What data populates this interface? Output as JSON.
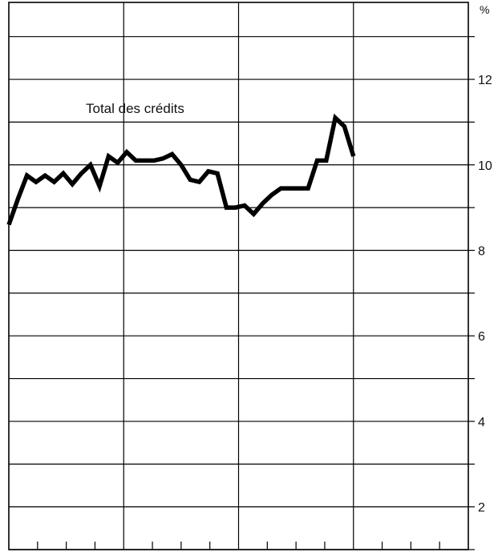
{
  "chart_data": {
    "type": "line",
    "title": "",
    "xlabel": "",
    "ylabel": "",
    "unit_label": "%",
    "annotation": "Total des crédits",
    "ylim": [
      1.0,
      13.8
    ],
    "yticks": [
      2,
      4,
      6,
      8,
      10,
      12
    ],
    "ytick_labels": [
      "2",
      "4",
      "6",
      "8",
      "10",
      "12"
    ],
    "grid": true,
    "series": [
      {
        "values": [
          8.6,
          9.2,
          9.75,
          9.6,
          9.75,
          9.6,
          9.8,
          9.55,
          9.8,
          10.0,
          9.5,
          10.2,
          10.05,
          10.3,
          10.1,
          10.1,
          10.1,
          10.15,
          10.25,
          10.0,
          9.65,
          9.6,
          9.85,
          9.8,
          9.0,
          9.0,
          9.05,
          8.85,
          9.1,
          9.3,
          9.45,
          9.45,
          9.45,
          9.45,
          10.1,
          10.1,
          11.1,
          10.9,
          10.2
        ]
      }
    ]
  }
}
